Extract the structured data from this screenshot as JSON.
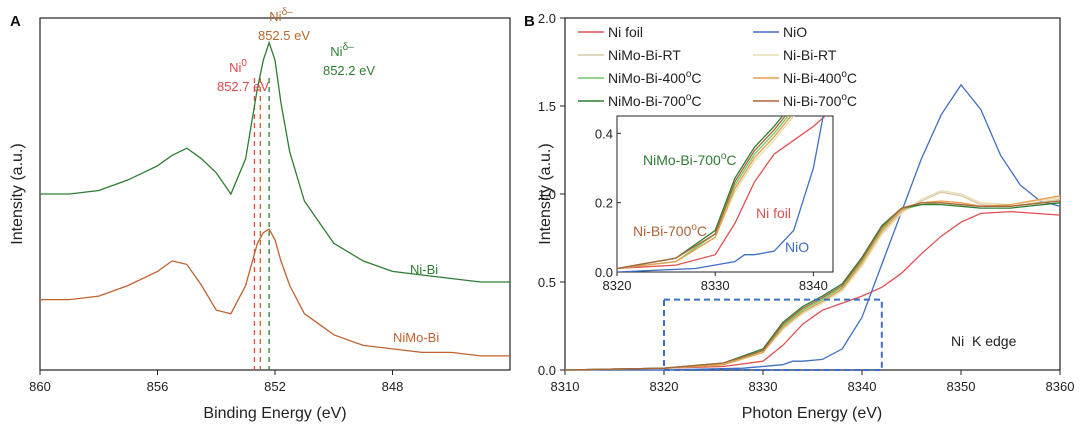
{
  "chart_data": [
    {
      "panel": "A",
      "type": "line",
      "xlabel": "Binding Energy (eV)",
      "ylabel": "Intensity (a.u.)",
      "xlim": [
        860,
        844
      ],
      "x_reversed": true,
      "xticks": [
        860,
        856,
        852,
        848
      ],
      "y_ticks_shown": false,
      "colors": {
        "Ni-Bi": "#2e7d32",
        "NiMo-Bi": "#c0622f",
        "ni0": "#e04848"
      },
      "series": [
        {
          "name": "Ni-Bi",
          "x": [
            860,
            859,
            858,
            857,
            856,
            855.5,
            855,
            854.5,
            854,
            853.5,
            853,
            852.8,
            852.6,
            852.4,
            852.2,
            852,
            851.8,
            851.5,
            851,
            850.5,
            850,
            849,
            848,
            847,
            846,
            845,
            844
          ],
          "y": [
            0.5,
            0.5,
            0.51,
            0.54,
            0.58,
            0.61,
            0.63,
            0.6,
            0.56,
            0.5,
            0.6,
            0.7,
            0.8,
            0.88,
            0.93,
            0.88,
            0.76,
            0.62,
            0.48,
            0.42,
            0.36,
            0.31,
            0.28,
            0.27,
            0.26,
            0.25,
            0.25
          ]
        },
        {
          "name": "NiMo-Bi",
          "x": [
            860,
            859,
            858,
            857,
            856,
            855.5,
            855,
            854.5,
            854,
            853.5,
            853,
            852.8,
            852.6,
            852.4,
            852.2,
            852,
            851.8,
            851.5,
            851,
            850.5,
            850,
            849,
            848,
            847,
            846,
            845,
            844
          ],
          "y": [
            0.2,
            0.2,
            0.21,
            0.24,
            0.28,
            0.31,
            0.3,
            0.24,
            0.17,
            0.16,
            0.24,
            0.3,
            0.36,
            0.39,
            0.4,
            0.37,
            0.31,
            0.24,
            0.16,
            0.13,
            0.1,
            0.07,
            0.06,
            0.05,
            0.05,
            0.04,
            0.04
          ]
        }
      ],
      "reference_lines": [
        852.7,
        852.5,
        852.2
      ],
      "annotations": {
        "ni0_label": "Ni",
        "ni0_sup": "0",
        "ni0_value": "852.7 eV",
        "nid1_label": "Ni",
        "nid1_sup": "δ–",
        "nid1_value": "852.5 eV",
        "nid2_label": "Ni",
        "nid2_sup": "δ–",
        "nid2_value": "852.2 eV",
        "curve_label_nibi": "Ni-Bi",
        "curve_label_nimobi": "NiMo-Bi"
      }
    },
    {
      "panel": "B",
      "type": "line",
      "xlabel": "Photon Energy (eV)",
      "ylabel": "Intensity (a.u.)",
      "xlim": [
        8310,
        8360
      ],
      "ylim": [
        0,
        2.0
      ],
      "xticks": [
        8310,
        8320,
        8330,
        8340,
        8350,
        8360
      ],
      "yticks": [
        "0.0",
        "0.5",
        "1.0",
        "1.5",
        "2.0"
      ],
      "edge_label": "Ni  K edge",
      "legend": [
        {
          "name": "Ni foil",
          "color": "#e05050"
        },
        {
          "name": "NiO",
          "color": "#3f6fc4"
        },
        {
          "name": "NiMo-Bi-RT",
          "color": "#d9c9a6"
        },
        {
          "name": "Ni-Bi-RT",
          "color": "#e8dcb2"
        },
        {
          "name": "NiMo-Bi-400°C",
          "color": "#6cc86a"
        },
        {
          "name": "Ni-Bi-400°C",
          "color": "#e6a14a"
        },
        {
          "name": "NiMo-Bi-700°C",
          "color": "#2e7d32"
        },
        {
          "name": "Ni-Bi-700°C",
          "color": "#b0643a"
        }
      ],
      "legend_text": {
        "ni_foil": "Ni foil",
        "nio": "NiO",
        "nimo_rt": "NiMo-Bi-RT",
        "ni_rt": "Ni-Bi-RT",
        "nimo_400_a": "NiMo-Bi-400",
        "nimo_400_b": "C",
        "ni_400_a": "Ni-Bi-400",
        "ni_400_b": "C",
        "nimo_700_a": "NiMo-Bi-700",
        "nimo_700_b": "C",
        "ni_700_a": "Ni-Bi-700",
        "ni_700_b": "C",
        "degree_sup": "o"
      },
      "series": [
        {
          "name": "Ni foil",
          "x": [
            8310,
            8320,
            8326,
            8330,
            8332,
            8334,
            8336,
            8338,
            8340,
            8342,
            8344,
            8346,
            8348,
            8350,
            8352,
            8355,
            8360
          ],
          "y": [
            0.0,
            0.01,
            0.02,
            0.05,
            0.14,
            0.26,
            0.34,
            0.38,
            0.42,
            0.47,
            0.55,
            0.66,
            0.76,
            0.84,
            0.89,
            0.9,
            0.88
          ]
        },
        {
          "name": "NiO",
          "x": [
            8310,
            8320,
            8328,
            8332,
            8333,
            8334,
            8336,
            8338,
            8340,
            8342,
            8344,
            8346,
            8348,
            8350,
            8352,
            8354,
            8356,
            8358,
            8360
          ],
          "y": [
            0.0,
            0.0,
            0.01,
            0.03,
            0.05,
            0.05,
            0.06,
            0.12,
            0.3,
            0.6,
            0.9,
            1.2,
            1.45,
            1.62,
            1.48,
            1.22,
            1.05,
            0.96,
            0.93
          ]
        },
        {
          "name": "NiMo-Bi-RT",
          "x": [
            8310,
            8320,
            8326,
            8330,
            8332,
            8334,
            8336,
            8338,
            8340,
            8342,
            8344,
            8346,
            8348,
            8350,
            8352,
            8355,
            8360
          ],
          "y": [
            0.0,
            0.01,
            0.03,
            0.1,
            0.24,
            0.33,
            0.39,
            0.46,
            0.6,
            0.78,
            0.9,
            0.96,
            1.01,
            0.99,
            0.94,
            0.93,
            0.97
          ]
        },
        {
          "name": "Ni-Bi-RT",
          "x": [
            8310,
            8320,
            8326,
            8330,
            8332,
            8334,
            8336,
            8338,
            8340,
            8342,
            8344,
            8346,
            8348,
            8350,
            8352,
            8355,
            8360
          ],
          "y": [
            0.0,
            0.01,
            0.03,
            0.1,
            0.23,
            0.32,
            0.38,
            0.45,
            0.59,
            0.77,
            0.89,
            0.97,
            1.02,
            1.0,
            0.95,
            0.94,
            0.98
          ]
        },
        {
          "name": "NiMo-Bi-400°C",
          "x": [
            8310,
            8320,
            8326,
            8330,
            8332,
            8334,
            8336,
            8338,
            8340,
            8342,
            8344,
            8346,
            8348,
            8350,
            8352,
            8355,
            8360
          ],
          "y": [
            0.0,
            0.01,
            0.03,
            0.11,
            0.25,
            0.34,
            0.4,
            0.47,
            0.62,
            0.8,
            0.91,
            0.94,
            0.95,
            0.94,
            0.93,
            0.93,
            0.96
          ]
        },
        {
          "name": "Ni-Bi-400°C",
          "x": [
            8310,
            8320,
            8326,
            8330,
            8332,
            8334,
            8336,
            8338,
            8340,
            8342,
            8344,
            8346,
            8348,
            8350,
            8352,
            8355,
            8360
          ],
          "y": [
            0.0,
            0.01,
            0.03,
            0.1,
            0.24,
            0.33,
            0.39,
            0.46,
            0.61,
            0.79,
            0.91,
            0.95,
            0.96,
            0.95,
            0.93,
            0.94,
            0.99
          ]
        },
        {
          "name": "NiMo-Bi-700°C",
          "x": [
            8310,
            8320,
            8326,
            8330,
            8332,
            8334,
            8336,
            8338,
            8340,
            8342,
            8344,
            8346,
            8348,
            8350,
            8352,
            8355,
            8360
          ],
          "y": [
            0.0,
            0.01,
            0.04,
            0.12,
            0.27,
            0.36,
            0.42,
            0.49,
            0.64,
            0.82,
            0.92,
            0.94,
            0.94,
            0.93,
            0.92,
            0.92,
            0.95
          ]
        },
        {
          "name": "Ni-Bi-700°C",
          "x": [
            8310,
            8320,
            8326,
            8330,
            8332,
            8334,
            8336,
            8338,
            8340,
            8342,
            8344,
            8346,
            8348,
            8350,
            8352,
            8355,
            8360
          ],
          "y": [
            0.0,
            0.01,
            0.04,
            0.11,
            0.26,
            0.35,
            0.41,
            0.48,
            0.63,
            0.81,
            0.92,
            0.95,
            0.95,
            0.94,
            0.93,
            0.93,
            0.96
          ]
        }
      ],
      "zoom_box": {
        "x": [
          8320,
          8342
        ],
        "y": [
          0.0,
          0.4
        ]
      },
      "inset": {
        "xlim": [
          8320,
          8342
        ],
        "ylim": [
          0,
          0.45
        ],
        "xticks": [
          8320,
          8330,
          8340
        ],
        "yticks": [
          "0.0",
          "0.2",
          "0.4"
        ],
        "label_nimo700_a": "NiMo-Bi-700",
        "label_nimo700_b": "C",
        "label_ni700_a": "Ni-Bi-700",
        "label_ni700_b": "C",
        "label_nifoil": "Ni foil",
        "label_nio": "NiO",
        "degree_sup": "o"
      }
    }
  ]
}
